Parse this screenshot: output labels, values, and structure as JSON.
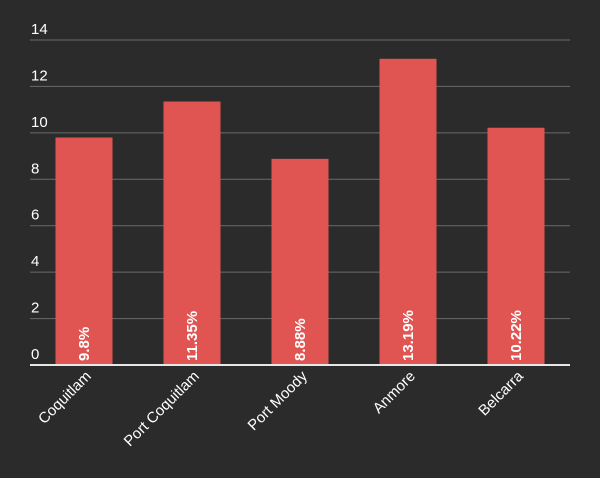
{
  "chart_data": {
    "type": "bar",
    "title": "",
    "xlabel": "",
    "ylabel": "",
    "categories": [
      "Coquitlam",
      "Port Coquitlam",
      "Port Moody",
      "Anmore",
      "Belcarra"
    ],
    "values": [
      9.8,
      11.35,
      8.88,
      13.19,
      10.22
    ],
    "data_labels": [
      "9.8%",
      "11.35%",
      "8.88%",
      "13.19%",
      "10.22%"
    ],
    "ylim": [
      0,
      14
    ],
    "yticks": [
      0,
      2,
      4,
      6,
      8,
      10,
      12,
      14
    ],
    "grid": true,
    "legend": "none",
    "colors": {
      "background": "#2b2b2b",
      "bar": "#e05552",
      "grid": "#6a6a6a",
      "baseline": "#e6e6e6",
      "text": "#ffffff"
    }
  }
}
